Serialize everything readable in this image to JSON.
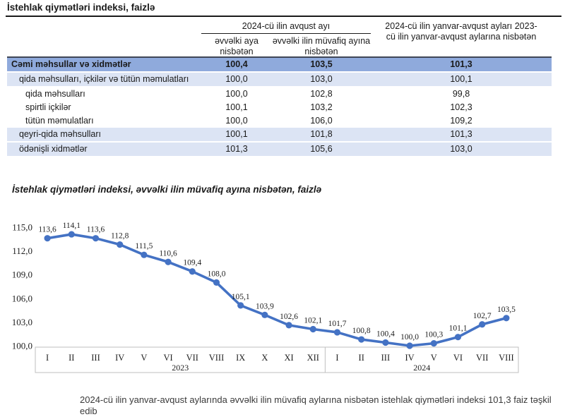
{
  "page": {
    "title": "İstehlak qiymətləri indeksi, faizlə"
  },
  "table": {
    "col_group_header": "2024-cü ilin avqust ayı",
    "subheaders": [
      "əvvəlki aya nisbətən",
      "əvvəlki ilin müvafiq ayına nisbətən"
    ],
    "col3_header": "2024-cü ilin yanvar-avqust ayları 2023-cü ilin yanvar-avqust aylarına nisbətən",
    "rows": [
      {
        "label": "Cəmi məhsullar və xidmətlər",
        "values": [
          "100,4",
          "103,5",
          "101,3"
        ],
        "style": "total",
        "indent": 0
      },
      {
        "label": "qida məhsulları, içkilər və tütün məmulatları",
        "values": [
          "100,0",
          "103,0",
          "100,1"
        ],
        "style": "shaded",
        "indent": 1
      },
      {
        "label": "qida məhsulları",
        "values": [
          "100,0",
          "102,8",
          "99,8"
        ],
        "style": "plain",
        "indent": 2
      },
      {
        "label": "spirtli içkilər",
        "values": [
          "100,1",
          "103,2",
          "102,3"
        ],
        "style": "plain",
        "indent": 2
      },
      {
        "label": "tütün məmulatları",
        "values": [
          "100,0",
          "106,0",
          "109,2"
        ],
        "style": "plain",
        "indent": 2
      },
      {
        "label": "qeyri-qida məhsulları",
        "values": [
          "100,1",
          "101,8",
          "101,3"
        ],
        "style": "shaded",
        "indent": 1
      },
      {
        "label": "ödənişli xidmətlər",
        "values": [
          "101,3",
          "105,6",
          "103,0"
        ],
        "style": "shaded",
        "indent": 1
      }
    ]
  },
  "chart_data": {
    "type": "line",
    "title": "İstehlak qiymətləri indeksi, əvvəlki ilin müvafiq ayına nisbətən, faizlə",
    "x": [
      "I",
      "II",
      "III",
      "IV",
      "V",
      "VI",
      "VII",
      "VIII",
      "IX",
      "X",
      "XI",
      "XII",
      "I",
      "II",
      "III",
      "IV",
      "V",
      "VI",
      "VII",
      "VIII"
    ],
    "x_groups": [
      {
        "label": "2023",
        "count": 12
      },
      {
        "label": "2024",
        "count": 8
      }
    ],
    "values": [
      113.6,
      114.1,
      113.6,
      112.8,
      111.5,
      110.6,
      109.4,
      108.0,
      105.1,
      103.9,
      102.6,
      102.1,
      101.7,
      100.8,
      100.4,
      100.0,
      100.3,
      101.1,
      102.7,
      103.5
    ],
    "y_ticks": [
      115.0,
      112.0,
      109.0,
      106.0,
      103.0,
      100.0
    ],
    "ylim": [
      100,
      115
    ],
    "grid": false,
    "legend": "none",
    "line_color": "#4472C4",
    "decimal_separator": ","
  },
  "footer": {
    "cutoff_text": "2024-cü ilin yanvar-avqust aylarında əvvəlki ilin müvafiq aylarına nisbətən istehlak qiymətləri indeksi 101,3 faiz təşkil edib"
  },
  "colors": {
    "accent_blue": "#4472C4",
    "table_total_row_bg": "#8FAADC",
    "table_shaded_row_bg": "#DCE4F4",
    "axis_box_border": "#BFBFBF"
  }
}
